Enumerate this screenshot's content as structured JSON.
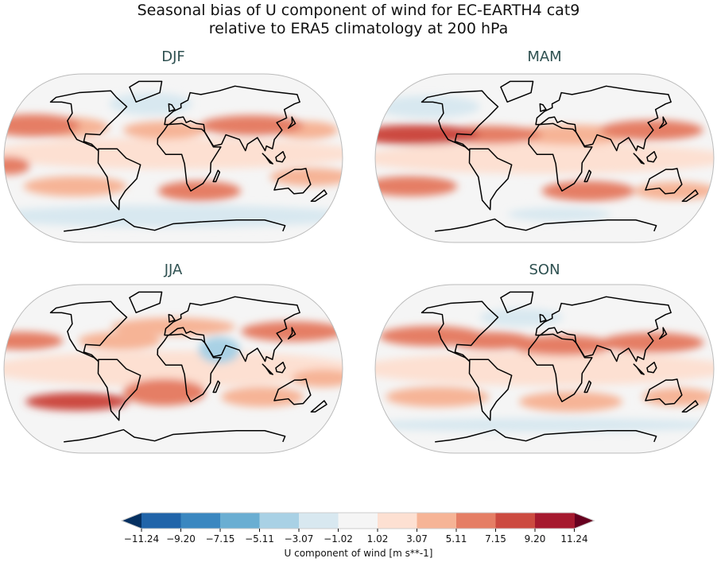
{
  "figure": {
    "title_line1": "Seasonal bias of U component of wind for EC-EARTH4 cat9",
    "title_line2": "relative to ERA5 climatology at 200 hPa"
  },
  "panels": [
    {
      "title": "DJF"
    },
    {
      "title": "MAM"
    },
    {
      "title": "JJA"
    },
    {
      "title": "SON"
    }
  ],
  "colorbar": {
    "label": "U component of wind [m s**-1]",
    "ticks": [
      "−11.24",
      "−9.20",
      "−7.15",
      "−5.11",
      "−3.07",
      "−1.02",
      "1.02",
      "3.07",
      "5.11",
      "7.15",
      "9.20",
      "11.24"
    ],
    "extend": "both",
    "under_color": "#053061",
    "over_color": "#67001f",
    "colors": [
      "#2064a9",
      "#3a87c0",
      "#6aaed2",
      "#a9d1e5",
      "#d8e8f0",
      "#f5f5f5",
      "#fde0d2",
      "#f6b496",
      "#e57e65",
      "#cc4a40",
      "#a6192e"
    ]
  },
  "colors": {
    "coastline": "#000000",
    "panel_title": "#2f5151"
  }
}
